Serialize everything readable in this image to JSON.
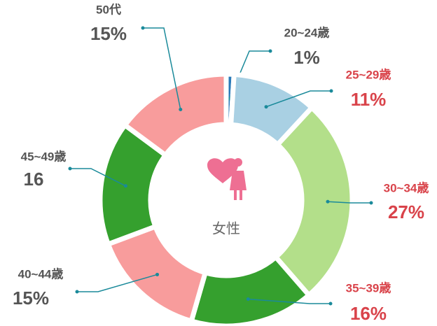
{
  "chart_data": {
    "type": "donut",
    "center_label": "女性",
    "categories": [
      "20~24歳",
      "25~29歳",
      "30~34歳",
      "35~39歳",
      "40~44歳",
      "45~49歳",
      "50代"
    ],
    "values": [
      1,
      11,
      27,
      16,
      15,
      16,
      15
    ],
    "value_labels": [
      "1%",
      "11%",
      "27%",
      "16%",
      "15%",
      "16",
      "15%"
    ],
    "colors": [
      "#2a7ab8",
      "#a9d0e3",
      "#b3df8a",
      "#35a02e",
      "#f89c9c",
      "#35a02e",
      "#f89c9c"
    ],
    "label_colors": [
      "#555555",
      "#d9434a",
      "#d9434a",
      "#d9434a",
      "#555555",
      "#555555",
      "#555555"
    ]
  }
}
